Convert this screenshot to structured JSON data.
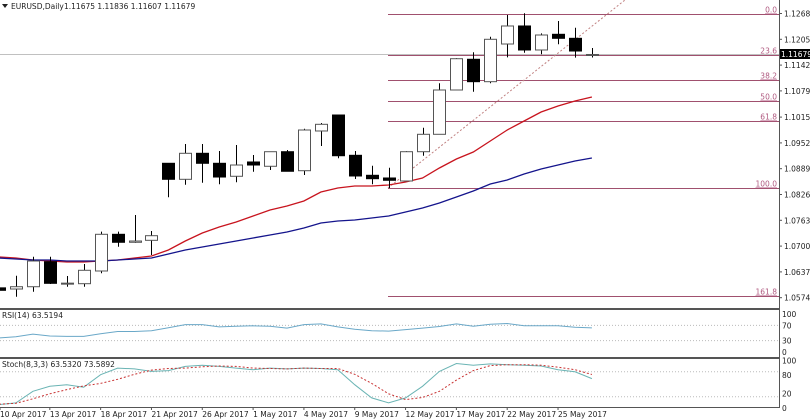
{
  "header": {
    "symbol": "EURUSD,Daily",
    "ohlc": "1.11675 1.11836 1.11607 1.11679",
    "menu_icon": "triangle-down"
  },
  "colors": {
    "bull_body": "#ffffff",
    "bear_body": "#000000",
    "ma_fast": "#c8141e",
    "ma_slow": "#14148c",
    "fib": "#a0506e",
    "rsi": "#6aa8c8",
    "stoch_main": "#6ab4b4",
    "stoch_signal": "#c83232"
  },
  "price_axis": {
    "ticks": [
      "1.12680",
      "1.12050",
      "1.11420",
      "1.10790",
      "1.10150",
      "1.09520",
      "1.08890",
      "1.08260",
      "1.07630",
      "1.07000",
      "1.06370",
      "1.05740"
    ],
    "current_price": "1.11679"
  },
  "fibonacci": {
    "high": 1.1268,
    "low": 1.0842,
    "levels": [
      {
        "label": "0.0",
        "ratio": 0
      },
      {
        "label": "23.6",
        "ratio": 0.236
      },
      {
        "label": "38.2",
        "ratio": 0.382
      },
      {
        "label": "50.0",
        "ratio": 0.5
      },
      {
        "label": "61.8",
        "ratio": 0.618
      },
      {
        "label": "100.0",
        "ratio": 1.0
      },
      {
        "label": "161.8",
        "ratio": 1.618
      }
    ]
  },
  "date_axis": [
    {
      "index": 0,
      "label": "10 Apr 2017"
    },
    {
      "index": 3,
      "label": "13 Apr 2017"
    },
    {
      "index": 6,
      "label": "18 Apr 2017"
    },
    {
      "index": 9,
      "label": "21 Apr 2017"
    },
    {
      "index": 12,
      "label": "26 Apr 2017"
    },
    {
      "index": 15,
      "label": "1 May 2017"
    },
    {
      "index": 18,
      "label": "4 May 2017"
    },
    {
      "index": 21,
      "label": "9 May 2017"
    },
    {
      "index": 24,
      "label": "12 May 2017"
    },
    {
      "index": 27,
      "label": "17 May 2017"
    },
    {
      "index": 30,
      "label": "22 May 2017"
    },
    {
      "index": 33,
      "label": "25 May 2017"
    }
  ],
  "candles": [
    [
      1.0598,
      1.0601,
      1.059,
      1.0592
    ],
    [
      1.05952,
      1.06277,
      1.05764,
      1.06008
    ],
    [
      1.06008,
      1.06741,
      1.05886,
      1.06636
    ],
    [
      1.06619,
      1.06741,
      1.06074,
      1.06091
    ],
    [
      1.0609,
      1.0627,
      1.06008,
      1.06095
    ],
    [
      1.06082,
      1.06563,
      1.06008,
      1.06409
    ],
    [
      1.06392,
      1.07352,
      1.06336,
      1.07288
    ],
    [
      1.07288,
      1.07352,
      1.06985,
      1.07093
    ],
    [
      1.07093,
      1.07759,
      1.0708,
      1.07124
    ],
    [
      1.07141,
      1.07369,
      1.06783,
      1.07254
    ],
    [
      1.09022,
      1.0903,
      1.08192,
      1.08631
    ],
    [
      1.08631,
      1.09493,
      1.08499,
      1.09266
    ],
    [
      1.09266,
      1.09493,
      1.08548,
      1.09022
    ],
    [
      1.09022,
      1.09322,
      1.08509,
      1.08687
    ],
    [
      1.08705,
      1.09469,
      1.08558,
      1.0898
    ],
    [
      1.09054,
      1.09225,
      1.08817,
      1.0898
    ],
    [
      1.08949,
      1.09305,
      1.08858,
      1.09305
    ],
    [
      1.09305,
      1.09347,
      1.08827,
      1.08827
    ],
    [
      1.08841,
      1.09867,
      1.08736,
      1.09835
    ],
    [
      1.09811,
      1.10006,
      1.09444,
      1.09974
    ],
    [
      1.10201,
      1.10201,
      1.09144,
      1.09207
    ],
    [
      1.09217,
      1.09322,
      1.08639,
      1.08712
    ],
    [
      1.08729,
      1.08963,
      1.08509,
      1.08646
    ],
    [
      1.08663,
      1.08914,
      1.08419,
      1.08607
    ],
    [
      1.0859,
      1.0932,
      1.0858,
      1.09305
    ],
    [
      1.09305,
      1.09891,
      1.09207,
      1.0973
    ],
    [
      1.0973,
      1.10976,
      1.0973,
      1.10812
    ],
    [
      1.10812,
      1.1159,
      1.108,
      1.11576
    ],
    [
      1.11562,
      1.11733,
      1.1077,
      1.11015
    ],
    [
      1.11015,
      1.12113,
      1.10976,
      1.1205
    ],
    [
      1.11935,
      1.12643,
      1.1161,
      1.12375
    ],
    [
      1.12375,
      1.12685,
      1.11723,
      1.11789
    ],
    [
      1.11789,
      1.12196,
      1.11684,
      1.12155
    ],
    [
      1.12172,
      1.12497,
      1.11928,
      1.12074
    ],
    [
      1.12074,
      1.12333,
      1.11601,
      1.11764
    ],
    [
      1.11675,
      1.11836,
      1.11607,
      1.11679
    ]
  ],
  "ma_fast": [
    1.06734,
    1.0671,
    1.06661,
    1.06636,
    1.06612,
    1.06612,
    1.06636,
    1.06661,
    1.0671,
    1.06759,
    1.06905,
    1.07125,
    1.0732,
    1.07466,
    1.07589,
    1.07735,
    1.07882,
    1.07979,
    1.08101,
    1.08321,
    1.08419,
    1.08467,
    1.08467,
    1.08492,
    1.08565,
    1.08663,
    1.08907,
    1.09127,
    1.09298,
    1.09566,
    1.09835,
    1.10055,
    1.10275,
    1.10421,
    1.10543,
    1.10641
  ],
  "ma_slow": [
    1.0671,
    1.06685,
    1.06661,
    1.06661,
    1.06636,
    1.06636,
    1.06636,
    1.06661,
    1.06685,
    1.0671,
    1.06807,
    1.06905,
    1.06979,
    1.07052,
    1.07125,
    1.07198,
    1.07271,
    1.07345,
    1.07442,
    1.07564,
    1.07613,
    1.07638,
    1.07687,
    1.07735,
    1.07833,
    1.07931,
    1.08053,
    1.08199,
    1.08346,
    1.08517,
    1.08614,
    1.08761,
    1.08883,
    1.0898,
    1.09078,
    1.09151
  ],
  "rsi": {
    "label": "RSI(14) 63.5194",
    "levels": [
      "100",
      "70",
      "30",
      "0"
    ],
    "values": [
      37,
      40,
      47,
      42,
      41,
      41,
      48,
      54,
      54,
      56,
      64,
      72,
      72,
      66,
      68,
      69,
      68,
      63,
      72,
      74,
      66,
      60,
      56,
      55,
      59,
      63,
      67,
      74,
      68,
      73,
      75,
      69,
      69,
      69,
      65,
      63.52
    ]
  },
  "stoch": {
    "label": "Stoch(8,3,3) 63.5320 73.5892",
    "levels": [
      "100",
      "80",
      "20",
      "0"
    ],
    "main": [
      1,
      5,
      33,
      45,
      49,
      43,
      73,
      89,
      87,
      81,
      83,
      93,
      96,
      93,
      89,
      85,
      89,
      87,
      89,
      88,
      85,
      49,
      17,
      5,
      17,
      45,
      81,
      100,
      96,
      99,
      97,
      96,
      94,
      85,
      80,
      63.53
    ],
    "signal": [
      2,
      4,
      15,
      27,
      37,
      46,
      52,
      62,
      74,
      84,
      88,
      89,
      92,
      94,
      93,
      89,
      88,
      87,
      89,
      88,
      88,
      74,
      52,
      27,
      13,
      18,
      33,
      60,
      83,
      95,
      97,
      97,
      96,
      91,
      85,
      73.59
    ]
  }
}
